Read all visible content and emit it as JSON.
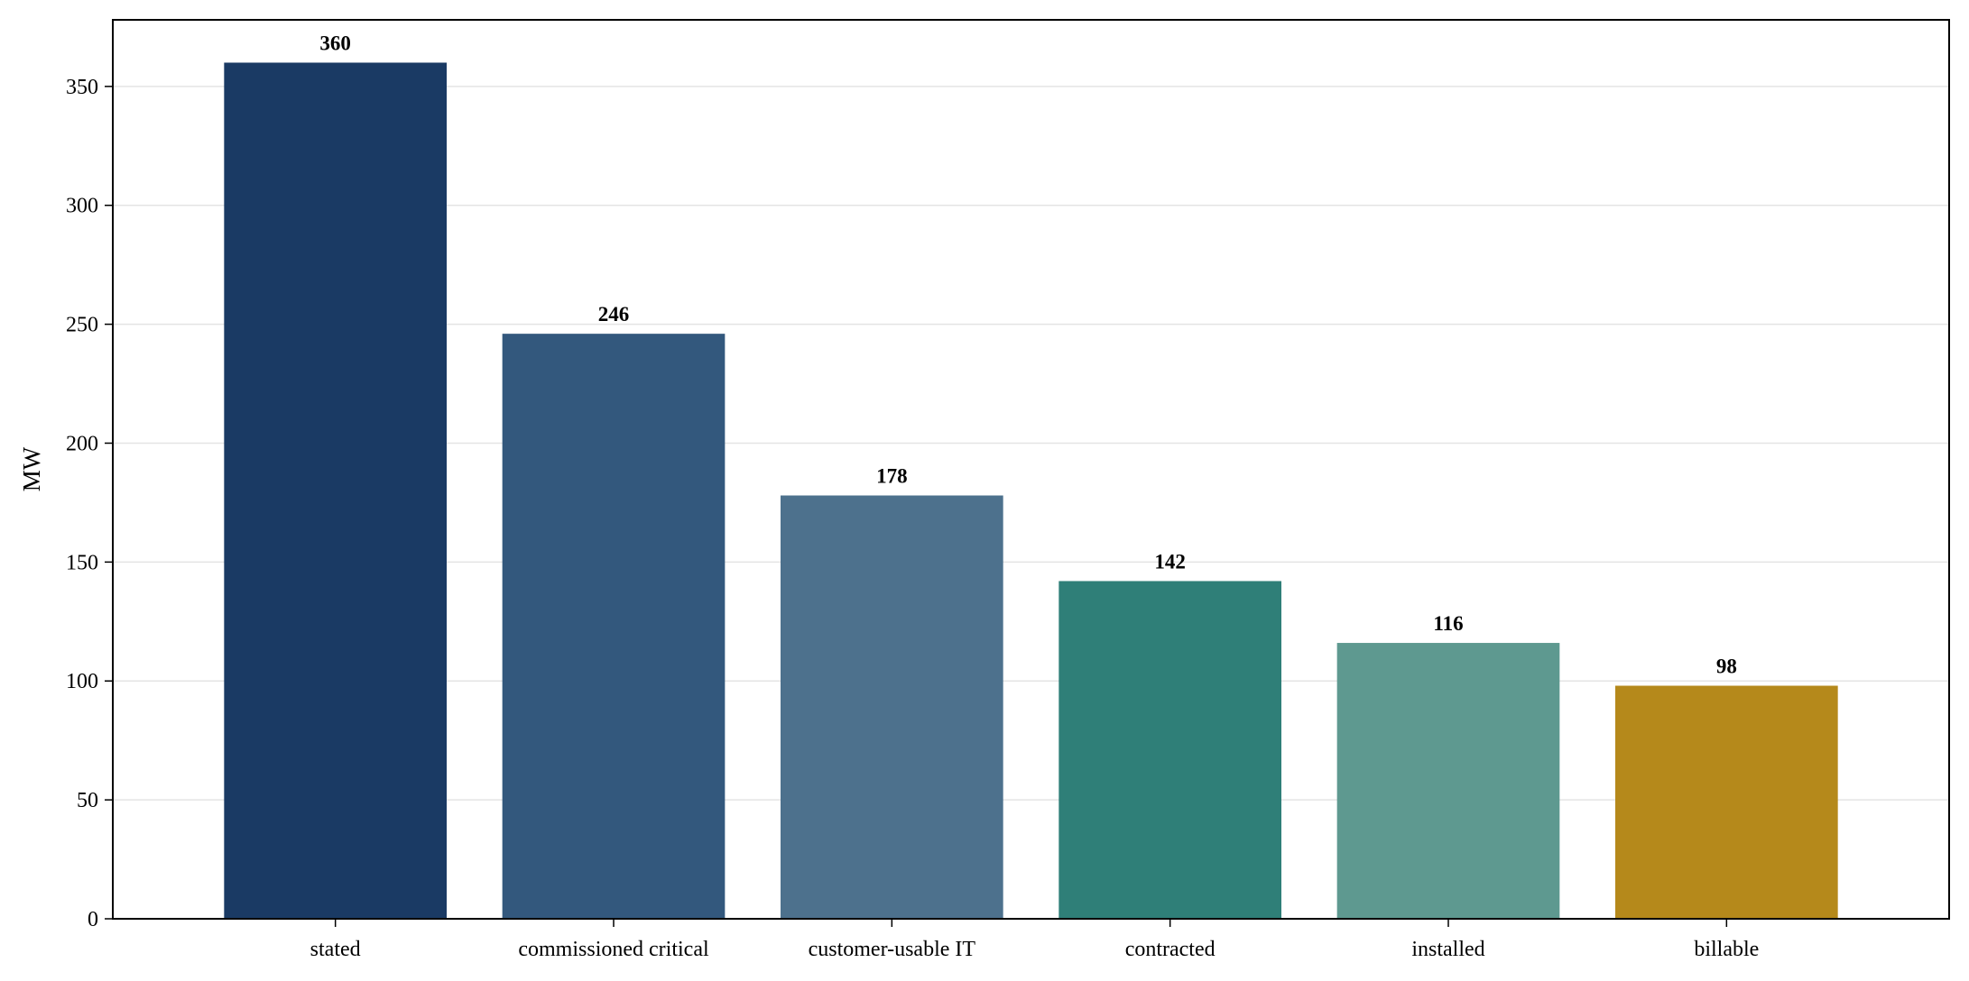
{
  "chart_data": {
    "type": "bar",
    "title": "",
    "xlabel": "",
    "ylabel": "MW",
    "ylim": [
      0,
      378
    ],
    "yticks": [
      0,
      50,
      100,
      150,
      200,
      250,
      300,
      350
    ],
    "grid": "y",
    "categories": [
      "stated",
      "commissioned critical",
      "customer-usable IT",
      "contracted",
      "installed",
      "billable"
    ],
    "values": [
      360,
      246,
      178,
      142,
      116,
      98
    ],
    "value_labels": [
      "360",
      "246",
      "178",
      "142",
      "116",
      "98"
    ],
    "colors": [
      "#1a3a64",
      "#33587d",
      "#4d718d",
      "#2f7f78",
      "#5e9990",
      "#b5891b"
    ],
    "legend": "none"
  }
}
